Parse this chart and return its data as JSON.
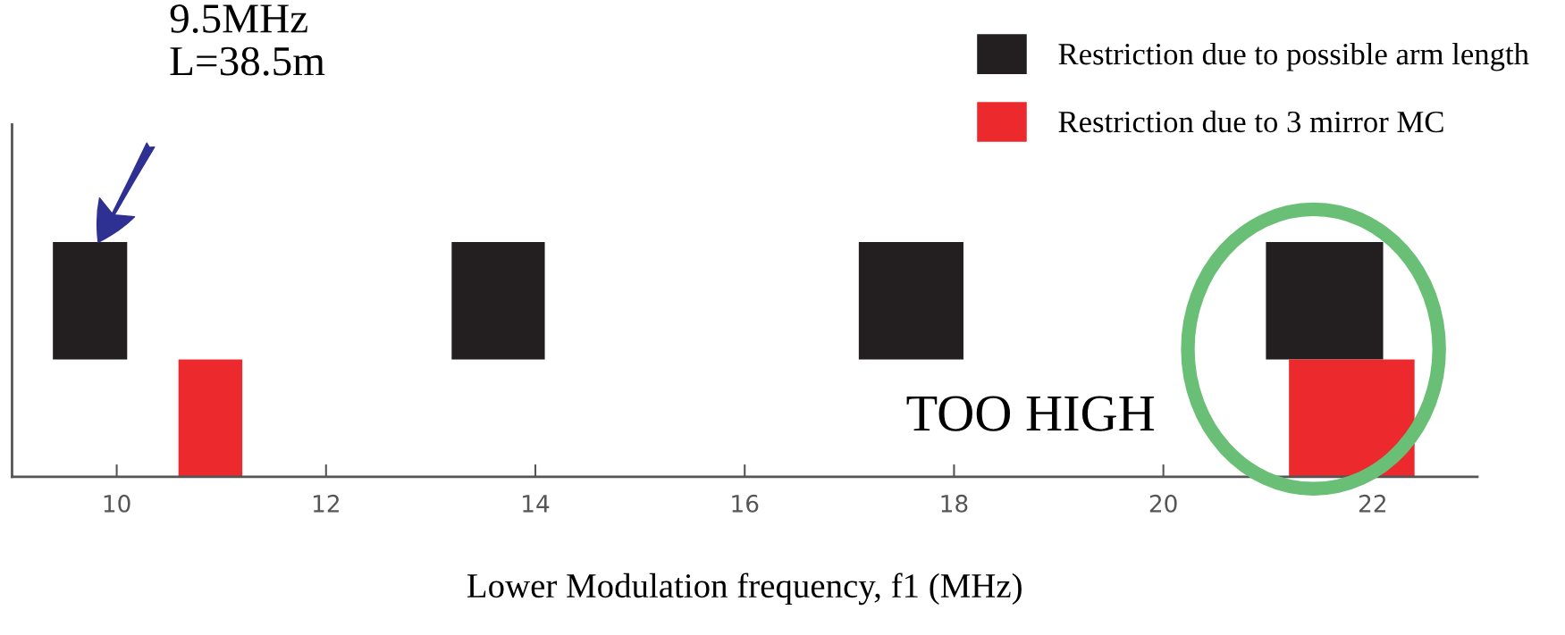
{
  "chart_data": {
    "type": "bar",
    "orientation": "horizontal",
    "categories": [
      null,
      null,
      null
    ],
    "series": [
      {
        "name": "Restriction due to possible arm length",
        "color": "#231f20",
        "values": [
          null,
          0.71,
          null
        ],
        "base": [
          null,
          9.39,
          null
        ]
      },
      {
        "color": "#231f20",
        "values": [
          null,
          0.89,
          null
        ],
        "base": [
          null,
          13.2,
          null
        ]
      },
      {
        "color": "#231f20",
        "values": [
          null,
          1.0,
          null
        ],
        "base": [
          null,
          17.09,
          null
        ]
      },
      {
        "color": "#231f20",
        "values": [
          null,
          1.12,
          null
        ],
        "base": [
          null,
          20.98,
          null
        ]
      },
      {
        "name": "Restriction due to 3 mirror MC",
        "color": "#ec2a2e",
        "values": [
          null,
          null,
          0.61
        ],
        "base": [
          null,
          null,
          10.59
        ]
      },
      {
        "color": "#ec2a2e",
        "values": [
          null,
          null,
          1.2
        ],
        "base": [
          null,
          null,
          21.2
        ]
      }
    ],
    "xlim": [
      9,
      23
    ],
    "xticks": [
      10,
      12,
      14,
      16,
      18,
      20,
      22
    ],
    "xlabel": "Lower Modulation frequency, f1 (MHz)",
    "annotations": [
      "9.5MHz\nL=38.5m",
      "TOO HIGH"
    ],
    "legend": "top right"
  }
}
